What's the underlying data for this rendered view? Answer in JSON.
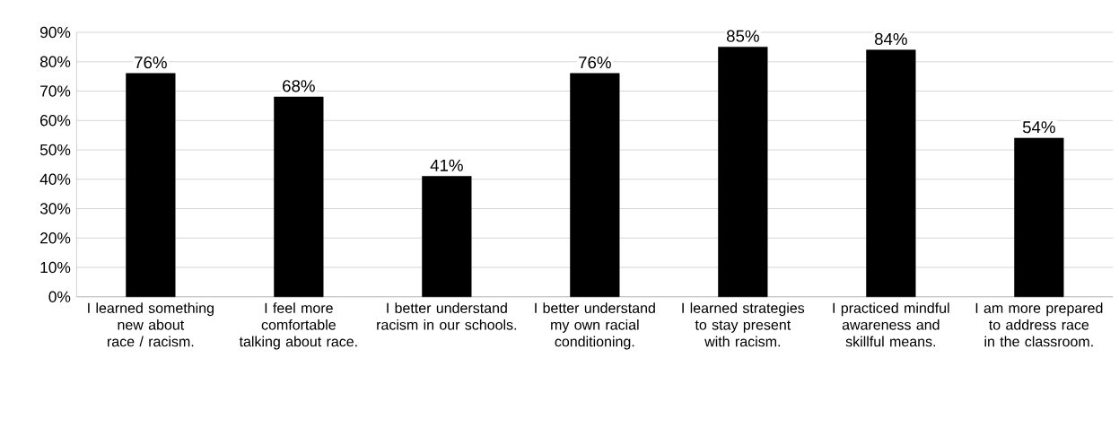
{
  "chart_data": {
    "type": "bar",
    "categories": [
      "I learned something new about race / racism.",
      "I feel more comfortable talking about race.",
      "I better understand racism in our schools.",
      "I better understand my own racial conditioning.",
      "I learned strategies to stay present with racism.",
      "I practiced mindful awareness and skillful means.",
      "I am more prepared to address race in the classroom."
    ],
    "values": [
      76,
      68,
      41,
      76,
      85,
      84,
      54
    ],
    "value_labels": [
      "76%",
      "68%",
      "41%",
      "76%",
      "85%",
      "84%",
      "54%"
    ],
    "color": "#000000",
    "ylim": [
      0,
      90
    ],
    "yticks": [
      {
        "value": 0,
        "label": "0%"
      },
      {
        "value": 10,
        "label": "10%"
      },
      {
        "value": 20,
        "label": "20%"
      },
      {
        "value": 30,
        "label": "30%"
      },
      {
        "value": 40,
        "label": "40%"
      },
      {
        "value": 50,
        "label": "50%"
      },
      {
        "value": 60,
        "label": "60%"
      },
      {
        "value": 70,
        "label": "70%"
      },
      {
        "value": 80,
        "label": "80%"
      },
      {
        "value": 90,
        "label": "90%"
      }
    ],
    "grid": "y"
  }
}
